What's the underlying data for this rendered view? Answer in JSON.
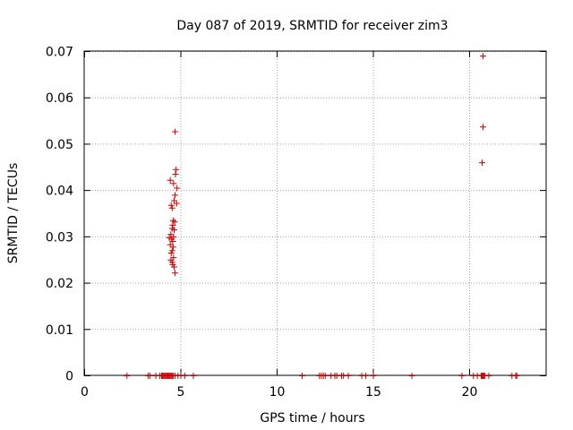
{
  "chart_data": {
    "type": "scatter",
    "title": "Day 087 of 2019, SRMTID for receiver zim3",
    "xlabel": "GPS time / hours",
    "ylabel": "SRMTID / TECUs",
    "xlim": [
      0,
      24
    ],
    "ylim": [
      0,
      0.07
    ],
    "grid": true,
    "color": "#cc0000",
    "x_ticks": [
      0,
      5,
      10,
      15,
      20
    ],
    "x_tick_labels": [
      "0",
      "5",
      "10",
      "15",
      "20"
    ],
    "y_ticks": [
      0,
      0.01,
      0.02,
      0.03,
      0.04,
      0.05,
      0.06,
      0.07
    ],
    "y_tick_labels": [
      "0",
      "0.01",
      "0.02",
      "0.03",
      "0.04",
      "0.05",
      "0.06",
      "0.07"
    ],
    "series": [
      {
        "name": "SRMTID",
        "points": [
          [
            4.7,
            0.0527
          ],
          [
            4.75,
            0.0445
          ],
          [
            4.72,
            0.0435
          ],
          [
            4.45,
            0.0422
          ],
          [
            4.62,
            0.0415
          ],
          [
            4.8,
            0.0405
          ],
          [
            4.7,
            0.039
          ],
          [
            4.65,
            0.0378
          ],
          [
            4.78,
            0.0372
          ],
          [
            4.5,
            0.0368
          ],
          [
            4.55,
            0.0362
          ],
          [
            4.6,
            0.0335
          ],
          [
            4.68,
            0.0332
          ],
          [
            4.58,
            0.0325
          ],
          [
            4.55,
            0.0318
          ],
          [
            4.65,
            0.0315
          ],
          [
            4.48,
            0.0305
          ],
          [
            4.62,
            0.03
          ],
          [
            4.4,
            0.0298
          ],
          [
            4.52,
            0.0295
          ],
          [
            4.58,
            0.029
          ],
          [
            4.45,
            0.0283
          ],
          [
            4.6,
            0.0278
          ],
          [
            4.55,
            0.027
          ],
          [
            4.5,
            0.0265
          ],
          [
            4.62,
            0.0255
          ],
          [
            4.48,
            0.025
          ],
          [
            4.55,
            0.0245
          ],
          [
            4.58,
            0.024
          ],
          [
            4.65,
            0.0235
          ],
          [
            4.7,
            0.0222
          ],
          [
            20.7,
            0.069
          ],
          [
            20.7,
            0.0537
          ],
          [
            20.65,
            0.046
          ],
          [
            2.2,
            0
          ],
          [
            3.3,
            0
          ],
          [
            3.4,
            0
          ],
          [
            3.7,
            0
          ],
          [
            3.9,
            0
          ],
          [
            4.0,
            0
          ],
          [
            4.05,
            0
          ],
          [
            4.1,
            0
          ],
          [
            4.15,
            0
          ],
          [
            4.2,
            0
          ],
          [
            4.25,
            0
          ],
          [
            4.3,
            0
          ],
          [
            4.35,
            0
          ],
          [
            4.4,
            0
          ],
          [
            4.45,
            0
          ],
          [
            4.5,
            0
          ],
          [
            4.55,
            0
          ],
          [
            4.6,
            0
          ],
          [
            4.7,
            0
          ],
          [
            4.85,
            0
          ],
          [
            5.0,
            0
          ],
          [
            5.2,
            0
          ],
          [
            5.65,
            0
          ],
          [
            11.3,
            0
          ],
          [
            12.2,
            0
          ],
          [
            12.3,
            0
          ],
          [
            12.4,
            0
          ],
          [
            12.5,
            0
          ],
          [
            12.8,
            0
          ],
          [
            13.0,
            0
          ],
          [
            13.1,
            0
          ],
          [
            13.35,
            0
          ],
          [
            13.45,
            0
          ],
          [
            13.7,
            0
          ],
          [
            14.4,
            0
          ],
          [
            14.6,
            0
          ],
          [
            15.0,
            0
          ],
          [
            17.0,
            0
          ],
          [
            19.6,
            0
          ],
          [
            20.2,
            0
          ],
          [
            20.4,
            0
          ],
          [
            20.6,
            0
          ],
          [
            20.65,
            0
          ],
          [
            20.7,
            0
          ],
          [
            20.75,
            0
          ],
          [
            20.8,
            0
          ],
          [
            21.0,
            0
          ],
          [
            22.2,
            0
          ],
          [
            22.4,
            0
          ],
          [
            22.45,
            0
          ]
        ]
      }
    ]
  }
}
